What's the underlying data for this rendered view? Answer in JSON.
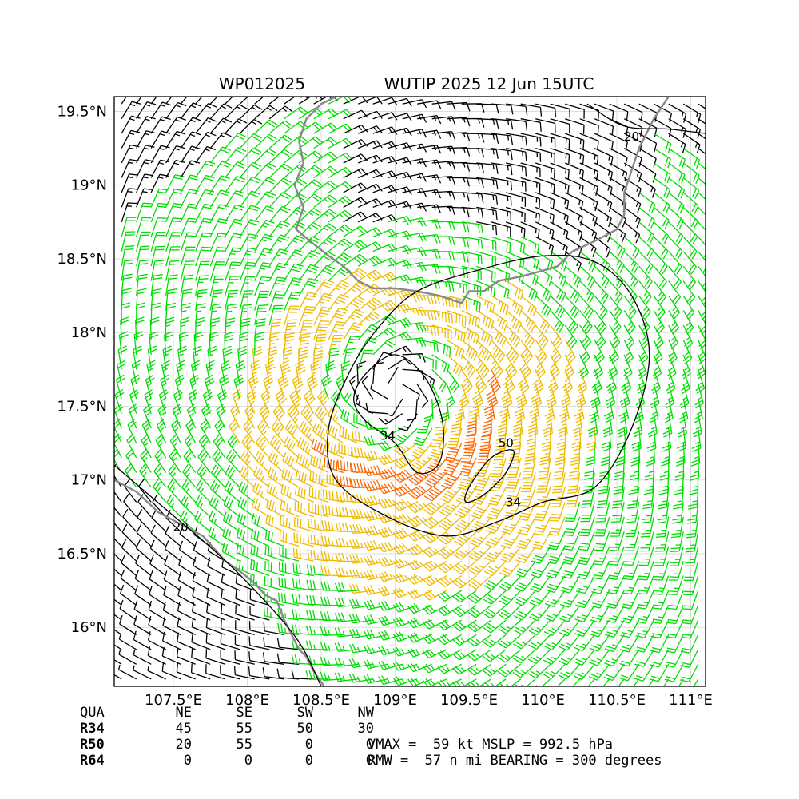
{
  "title_left": "WP012025",
  "title_right": "WUTIP 2025 12 Jun 15UTC",
  "chart_data": {
    "type": "wind-barb-map",
    "lon_range": [
      107.1,
      111.1
    ],
    "lat_range": [
      15.6,
      19.6
    ],
    "x_ticks": [
      {
        "value": 107.5,
        "label": "107.5°E"
      },
      {
        "value": 108.0,
        "label": "108°E"
      },
      {
        "value": 108.5,
        "label": "108.5°E"
      },
      {
        "value": 109.0,
        "label": "109°E"
      },
      {
        "value": 109.5,
        "label": "109.5°E"
      },
      {
        "value": 110.0,
        "label": "110°E"
      },
      {
        "value": 110.5,
        "label": "110.5°E"
      },
      {
        "value": 111.0,
        "label": "111°E"
      }
    ],
    "y_ticks": [
      {
        "value": 19.5,
        "label": "19.5°N"
      },
      {
        "value": 19.0,
        "label": "19°N"
      },
      {
        "value": 18.5,
        "label": "18.5°N"
      },
      {
        "value": 18.0,
        "label": "18°N"
      },
      {
        "value": 17.5,
        "label": "17.5°N"
      },
      {
        "value": 17.0,
        "label": "17°N"
      },
      {
        "value": 16.5,
        "label": "16.5°N"
      },
      {
        "value": 16.0,
        "label": "16°N"
      }
    ],
    "grid": true,
    "center": {
      "lon": 109.0,
      "lat": 17.6
    },
    "barb_colors": {
      "below_34kt": "#00dd00",
      "34_to_50kt": "#eebb00",
      "50_to_64kt": "#ff6600",
      "below_20kt": "#000000"
    },
    "coast_color": "#888888",
    "contour_labels": [
      {
        "text": "20",
        "lon": 110.6,
        "lat": 19.33
      },
      {
        "text": "20",
        "lon": 107.55,
        "lat": 16.68
      },
      {
        "text": "34",
        "lon": 108.95,
        "lat": 17.3
      },
      {
        "text": "34",
        "lon": 109.8,
        "lat": 16.85
      },
      {
        "text": "50",
        "lon": 109.75,
        "lat": 17.25
      }
    ]
  },
  "wind_radii_table": {
    "header": [
      "QUA",
      "NE",
      "SE",
      "SW",
      "NW"
    ],
    "rows": [
      {
        "label": "R34",
        "values": [
          "45",
          "55",
          "50",
          "30"
        ]
      },
      {
        "label": "R50",
        "values": [
          "20",
          "55",
          "0",
          "0"
        ]
      },
      {
        "label": "R64",
        "values": [
          "0",
          "0",
          "0",
          "0"
        ]
      }
    ]
  },
  "summary_line1": "VMAX =  59 kt MSLP = 992.5 hPa",
  "summary_line2": "RMW =  57 n mi BEARING = 300 degrees"
}
